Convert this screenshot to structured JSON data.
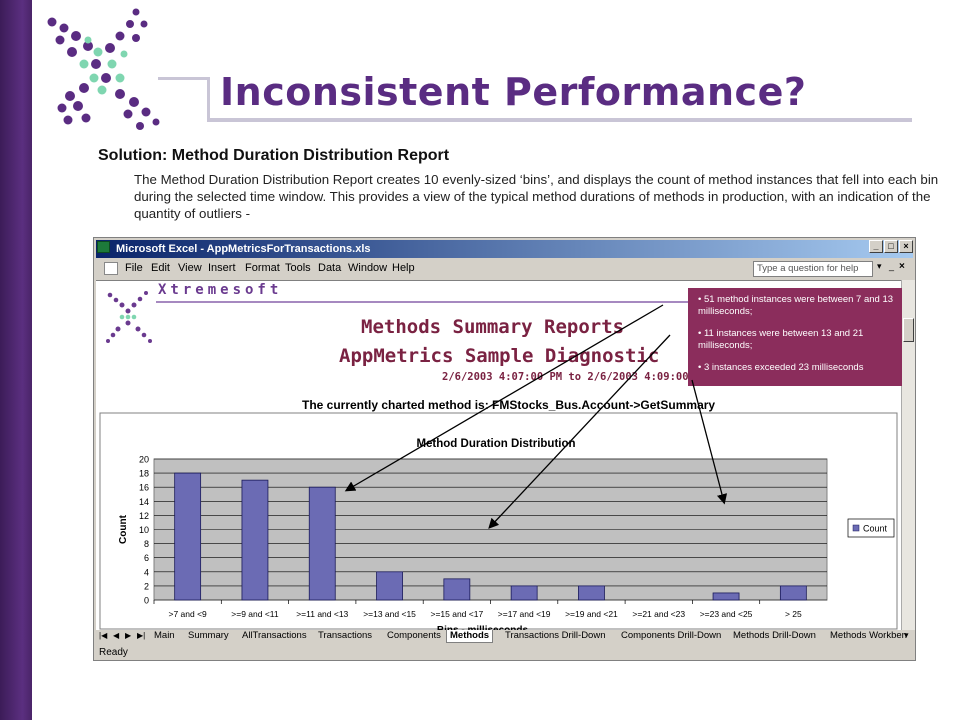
{
  "slide": {
    "title": "Inconsistent Performance?",
    "subheading": "Solution: Method Duration Distribution Report",
    "paragraph": "The Method Duration Distribution Report creates 10 evenly-sized ‘bins’, and displays the count of method instances that fell into each bin during the selected time window.  This provides a view of the typical method durations of methods in production, with an indication of the quantity of outliers -"
  },
  "excel": {
    "window_title": "Microsoft Excel - AppMetricsForTransactions.xls",
    "menus": [
      "File",
      "Edit",
      "View",
      "Insert",
      "Format",
      "Tools",
      "Data",
      "Window",
      "Help"
    ],
    "question_box": "Type a question for help",
    "status": "Ready",
    "sheet_tabs": [
      "Main",
      "Summary",
      "AllTransactions",
      "Transactions",
      "Components",
      "Methods",
      "Transactions Drill-Down",
      "Components Drill-Down",
      "Methods Drill-Down",
      "Methods Workben"
    ],
    "active_tab": "Methods"
  },
  "report": {
    "brand": "Xtremesoft",
    "title": "Methods Summary Reports",
    "subtitle": "AppMetrics Sample Diagnostic",
    "date_range": "2/6/2003 4:07:00 PM to 2/6/2003 4:09:00 PM",
    "charted_method": "The currently charted method is: FMStocks_Bus.Account->GetSummary"
  },
  "callout": {
    "bullets": [
      "• 51 method instances were between 7 and 13 milliseconds;",
      "• 11 instances were between 13 and 21 milliseconds;",
      "• 3 instances exceeded 23 milliseconds"
    ]
  },
  "colors": {
    "bar": "#6b6bb4",
    "plot_bg": "#c0c0c0",
    "callout": "#8b2d5c",
    "title": "#5a2c82"
  },
  "chart_data": {
    "type": "bar",
    "title": "Method Duration Distribution",
    "xlabel": "Bins - milliseconds",
    "ylabel": "Count",
    "categories": [
      ">7 and <9",
      ">=9 and <11",
      ">=11 and <13",
      ">=13 and <15",
      ">=15 and <17",
      ">=17 and <19",
      ">=19 and <21",
      ">=21 and <23",
      ">=23 and <25",
      "> 25"
    ],
    "series": [
      {
        "name": "Count",
        "values": [
          18,
          17,
          16,
          4,
          3,
          2,
          2,
          0,
          1,
          2
        ]
      }
    ],
    "ylim": [
      0,
      20
    ],
    "yticks": [
      0,
      2,
      4,
      6,
      8,
      10,
      12,
      14,
      16,
      18,
      20
    ],
    "grid": true,
    "legend": "right"
  }
}
